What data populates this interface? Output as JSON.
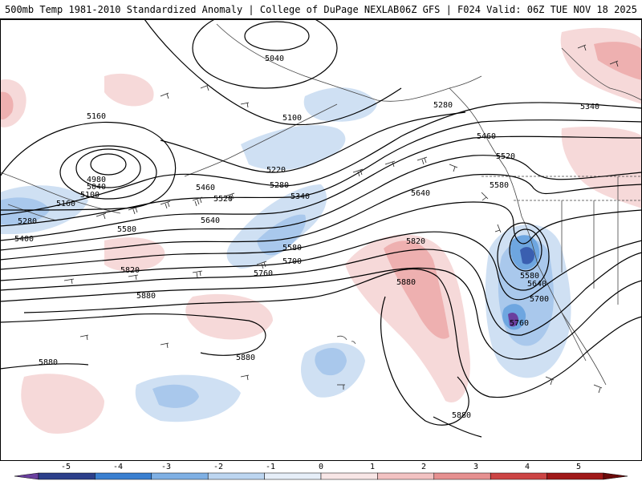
{
  "header": {
    "title": "500mb Temp 1981-2010 Standardized Anomaly | College of DuPage NEXLAB",
    "run_info": "06Z GFS | F024 Valid: 06Z TUE NOV 18 2025"
  },
  "colors": {
    "contour": "#000000",
    "coast": "#444444",
    "neg_1": "#cfe0f3",
    "neg_2": "#a9c8ec",
    "neg_3": "#6ea6e0",
    "neg_4": "#3a5fb0",
    "neg_5": "#6a3f9e",
    "pos_1": "#f6d9d9",
    "pos_2": "#eeb0b0",
    "pos_3": "#e07d7d",
    "pos_4": "#c43a3a",
    "pos_5": "#8a1a1a"
  },
  "height_labels": [
    "5040",
    "5160",
    "5100",
    "4980",
    "5040",
    "5100",
    "5160",
    "5280",
    "5400",
    "5220",
    "5280",
    "5340",
    "5460",
    "5520",
    "5580",
    "5640",
    "5580",
    "5700",
    "5760",
    "5820",
    "5880",
    "5880",
    "5880",
    "5820",
    "5880",
    "5640",
    "5580",
    "5520",
    "5460",
    "5280",
    "5340",
    "5580",
    "5640",
    "5700",
    "5760",
    "5880"
  ],
  "legend": {
    "ticks": [
      "-5",
      "-4",
      "-3",
      "-2",
      "-1",
      "0",
      "1",
      "2",
      "3",
      "4",
      "5"
    ],
    "bins": [
      {
        "color": "#6a3f9e"
      },
      {
        "color": "#2c3f8a"
      },
      {
        "color": "#3a7fd0"
      },
      {
        "color": "#7fb0e4"
      },
      {
        "color": "#bcd5f0"
      },
      {
        "color": "#e6eef8"
      },
      {
        "color": "#f8e6e6"
      },
      {
        "color": "#f2c2c2"
      },
      {
        "color": "#e69090"
      },
      {
        "color": "#cc4444"
      },
      {
        "color": "#a01818"
      },
      {
        "color": "#6a0a0a"
      }
    ]
  }
}
